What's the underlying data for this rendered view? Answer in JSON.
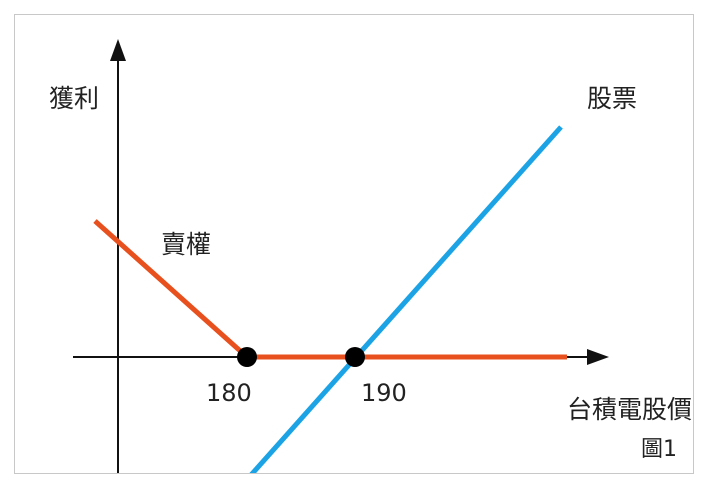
{
  "labels": {
    "y_axis": "獲利",
    "x_axis": "台積電股價",
    "stock_line": "股票",
    "put_line": "賣權",
    "tick_180": "180",
    "tick_190": "190",
    "figure": "圖1"
  },
  "colors": {
    "axis": "#111111",
    "put": "#e8501e",
    "stock": "#1ca3e6",
    "point": "#000000"
  }
}
